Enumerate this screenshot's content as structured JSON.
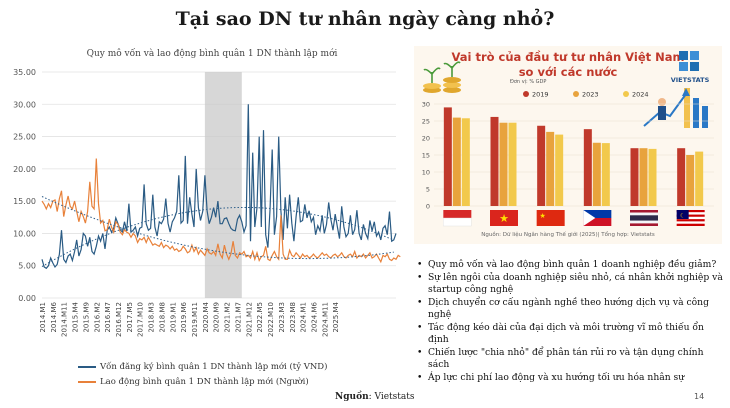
{
  "slide": {
    "title": "Tại sao DN tư nhân ngày càng nhỏ?",
    "source_label": "Nguồn",
    "source_value": ": Vietstats",
    "page_number": "14"
  },
  "colors": {
    "capital": "#2a5b84",
    "labor": "#e8813a",
    "trend": "#2f5f8a",
    "shade": "#c9c9c9",
    "bar2019": "#c0392b",
    "bar2023": "#e8a33d",
    "bar2024": "#f2c94c"
  },
  "left_chart_title": "Quy mô vốn và lao động bình quân 1 DN thành lập mới",
  "right_chart_header": {
    "title_line1": "Vai trò của đầu tư tư nhân Việt Nam",
    "title_line2": "so với các nước",
    "unit": "Đơn vị: % GDP",
    "logo_text": "VIETSTATS",
    "footer": "Nguồn: Dữ liệu Ngân hàng Thế giới (2025)| Tổng hợp: Vietstats",
    "flags": [
      "indonesia-flag-icon",
      "vietnam-flag-icon",
      "china-flag-icon",
      "philippines-flag-icon",
      "thailand-flag-icon",
      "malaysia-flag-icon"
    ]
  },
  "chart_data": [
    {
      "type": "line",
      "title": "Quy mô vốn và lao động bình quân 1 DN thành lập mới",
      "ylim": [
        0,
        35
      ],
      "yticks": [
        "0.00",
        "5.00",
        "10.00",
        "15.00",
        "20.00",
        "25.00",
        "30.00",
        "35.00"
      ],
      "x_tick_labels": [
        "2014.M1",
        "2014.M6",
        "2014.M11",
        "2015.M4",
        "2015.M9",
        "2016.M2",
        "2016.M7",
        "2016.M12",
        "2017.M5",
        "2017.M10",
        "2018.M3",
        "2018.M8",
        "2019.M1",
        "2019.M6",
        "2019.M11",
        "2020.M4",
        "2020.M9",
        "2021.M2",
        "2021.M7",
        "2021.M12",
        "2022.M5",
        "2022.M10",
        "2023.M3",
        "2023.M8",
        "2024.M1",
        "2024.M6",
        "2024.M11",
        "2025.M4"
      ],
      "shaded_range": [
        "2020.M4",
        "2021.M9"
      ],
      "legend_position": "bottom",
      "series": [
        {
          "name": "Vốn đăng ký bình quân 1 DN thành lập mới (tỷ VND)",
          "trendline": true,
          "values": [
            6.0,
            4.8,
            4.6,
            5.0,
            6.2,
            5.4,
            4.8,
            5.2,
            6.8,
            10.5,
            6.0,
            5.5,
            6.5,
            6.8,
            5.8,
            7.2,
            9.0,
            6.5,
            7.5,
            10.0,
            9.6,
            8.0,
            9.4,
            7.2,
            6.8,
            8.0,
            9.6,
            8.8,
            10.0,
            7.6,
            10.5,
            11.0,
            10.2,
            10.8,
            12.4,
            11.5,
            10.6,
            10.2,
            11.8,
            10.4,
            14.6,
            10.2,
            10.5,
            11.0,
            9.6,
            10.8,
            11.0,
            17.6,
            11.5,
            10.5,
            10.8,
            16.0,
            11.0,
            9.6,
            11.8,
            11.5,
            12.2,
            15.4,
            11.6,
            10.2,
            11.8,
            12.4,
            13.4,
            19.0,
            11.6,
            12.0,
            22.0,
            11.5,
            15.6,
            13.0,
            11.0,
            20.0,
            14.0,
            12.0,
            13.4,
            19.0,
            13.5,
            11.5,
            12.5,
            14.0,
            12.5,
            15.0,
            11.5,
            11.5,
            12.3,
            12.4,
            11.5,
            10.8,
            10.5,
            10.4,
            12.2,
            12.8,
            11.8,
            10.2,
            11.2,
            30.0,
            8.8,
            22.5,
            11.0,
            14.0,
            25.0,
            11.0,
            26.0,
            9.8,
            7.8,
            13.6,
            23.0,
            9.8,
            12.6,
            25.0,
            13.5,
            9.0,
            15.6,
            10.8,
            16.0,
            11.6,
            8.8,
            12.6,
            15.6,
            11.8,
            12.0,
            14.5,
            12.4,
            13.5,
            11.8,
            12.5,
            9.8,
            11.2,
            10.4,
            12.8,
            10.0,
            11.4,
            14.8,
            12.2,
            10.5,
            13.0,
            11.0,
            9.2,
            14.2,
            11.0,
            9.5,
            10.0,
            12.8,
            9.8,
            10.6,
            13.6,
            10.0,
            9.0,
            11.4,
            10.0,
            9.2,
            12.0,
            10.4,
            11.8,
            9.6,
            10.2,
            9.0,
            10.8,
            11.2,
            9.8,
            13.4,
            8.8,
            9.0,
            10.0
          ]
        },
        {
          "name": "Lao động bình quân 1 DN thành lập mới (Người)",
          "trendline": true,
          "values": [
            15.0,
            14.5,
            13.8,
            14.6,
            14.0,
            15.0,
            15.2,
            13.4,
            15.4,
            16.6,
            12.6,
            14.4,
            15.8,
            14.2,
            13.8,
            15.0,
            13.4,
            11.8,
            13.4,
            12.6,
            11.6,
            13.4,
            18.0,
            14.2,
            13.8,
            21.6,
            14.6,
            11.6,
            12.0,
            10.4,
            10.6,
            12.2,
            11.0,
            10.2,
            11.8,
            11.4,
            10.2,
            9.8,
            10.6,
            10.2,
            10.0,
            9.4,
            10.0,
            9.6,
            8.6,
            9.2,
            9.0,
            9.4,
            8.6,
            9.4,
            8.8,
            8.2,
            8.4,
            8.2,
            8.0,
            8.6,
            7.8,
            8.2,
            8.0,
            7.6,
            8.0,
            7.4,
            7.6,
            7.2,
            7.4,
            8.0,
            7.6,
            7.0,
            7.2,
            8.2,
            7.2,
            7.8,
            6.8,
            7.4,
            7.0,
            6.6,
            7.6,
            7.0,
            6.8,
            7.2,
            6.6,
            8.4,
            6.8,
            6.2,
            8.2,
            6.8,
            6.0,
            6.8,
            8.8,
            6.6,
            6.2,
            7.0,
            6.8,
            7.2,
            6.4,
            6.6,
            6.2,
            7.2,
            6.0,
            7.0,
            5.8,
            6.4,
            6.6,
            8.0,
            6.0,
            5.8,
            6.6,
            7.2,
            6.4,
            6.0,
            12.8,
            6.8,
            6.0,
            6.0,
            7.4,
            6.6,
            6.4,
            7.0,
            6.6,
            6.2,
            6.8,
            6.4,
            6.6,
            6.2,
            6.4,
            6.8,
            6.4,
            6.2,
            6.6,
            7.0,
            6.6,
            6.8,
            6.4,
            6.2,
            6.6,
            6.8,
            6.4,
            6.6,
            7.0,
            6.4,
            6.2,
            6.6,
            6.8,
            6.4,
            7.2,
            6.2,
            6.6,
            6.4,
            6.8,
            6.2,
            6.6,
            7.0,
            6.2,
            6.4,
            6.8,
            6.2,
            5.6,
            6.6,
            6.4,
            6.8,
            6.0,
            5.8,
            6.2,
            6.0,
            6.6,
            6.4
          ]
        }
      ]
    },
    {
      "type": "bar",
      "title": "Vai trò của đầu tư tư nhân Việt Nam so với các nước",
      "subtitle": "Đơn vị: % GDP",
      "categories": [
        "Indonesia",
        "Việt Nam",
        "Trung Quốc",
        "Philippines",
        "Thái Lan",
        "Malaysia"
      ],
      "ylim": [
        0,
        30
      ],
      "yticks": [
        "0",
        "5",
        "10",
        "15",
        "20",
        "25",
        "30"
      ],
      "legend_position": "top",
      "series": [
        {
          "name": "2019",
          "values": [
            29.0,
            26.2,
            23.6,
            22.6,
            17.0,
            17.0
          ]
        },
        {
          "name": "2023",
          "values": [
            26.0,
            24.5,
            21.8,
            18.6,
            17.0,
            15.0
          ]
        },
        {
          "name": "2024",
          "values": [
            25.8,
            24.5,
            21.0,
            18.5,
            16.8,
            16.0
          ]
        }
      ]
    }
  ],
  "bullets": [
    "Quy mô vốn và lao động bình quân 1 doanh nghiệp đều giảm?",
    "Sự lên ngôi của doanh nghiệp siêu nhỏ, cá nhân khởi nghiệp và startup công nghệ",
    "Dịch chuyển cơ cấu ngành nghề theo hướng dịch vụ và công nghệ",
    "Tác động kéo dài của đại dịch và môi trường vĩ mô thiếu ổn định",
    "Chiến lược \"chia nhỏ\" để phân tán rủi ro và tận dụng chính sách",
    "Áp lực chi phí lao động và xu hướng tối ưu hóa nhân sự"
  ]
}
